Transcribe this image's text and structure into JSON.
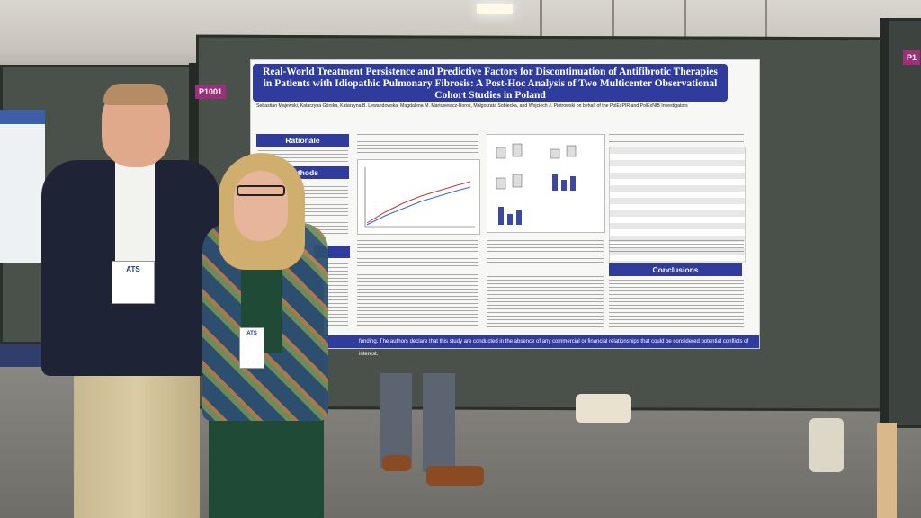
{
  "scene": {
    "colors": {
      "board": "#4a514b",
      "poster_band": "#2f3c9e",
      "tag": "#9b2f7a",
      "carpet": "#2f3e6b"
    }
  },
  "tags": {
    "main": "P1001",
    "right": "P1"
  },
  "poster": {
    "title": "Real-World Treatment Persistence and Predictive Factors for Discontinuation of Antifibrotic Therapies in Patients with Idiopathic Pulmonary Fibrosis: A Post-Hoc Analysis of Two Multicenter Observational Cohort Studies in Poland",
    "authors": "Sebastian Majewski, Katarzyna Górska, Katarzyna B. Lewandowska, Magdalena M. Martusewicz-Boros, Małgorzata Sobiecka, and Wojciech J. Piotrowski on behalf of the PolExPIR and PolExNIB Investigators",
    "sections": {
      "rationale": "Rationale",
      "methods": "Methods",
      "conclusions": "Conclusions"
    },
    "footer": "funding. The authors declare that this study are conducted in the absence of any commercial or financial relationships that could be considered potential conflicts of interest."
  },
  "badges": {
    "man": "ATS",
    "woman": "ATS"
  }
}
